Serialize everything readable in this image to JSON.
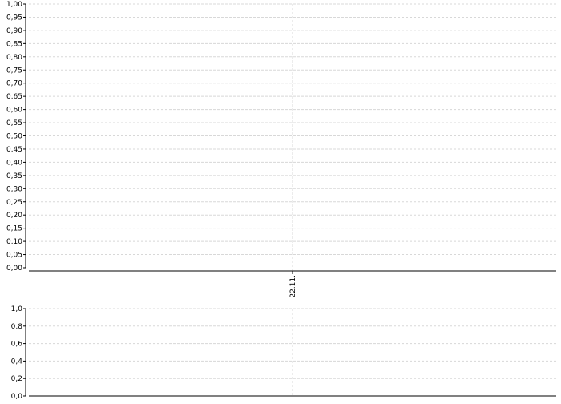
{
  "chart_data": [
    {
      "type": "line",
      "title": "",
      "xlabel": "",
      "ylabel": "",
      "x_tick_labels": [
        "22.11."
      ],
      "ylim": [
        0,
        1
      ],
      "y_ticks": [
        "0,00",
        "0,05",
        "0,10",
        "0,15",
        "0,20",
        "0,25",
        "0,30",
        "0,35",
        "0,40",
        "0,45",
        "0,50",
        "0,55",
        "0,60",
        "0,65",
        "0,70",
        "0,75",
        "0,80",
        "0,85",
        "0,90",
        "0,95",
        "1,00"
      ],
      "grid": true,
      "series": []
    },
    {
      "type": "bar",
      "title": "",
      "xlabel": "",
      "ylabel": "",
      "ylim": [
        0,
        1
      ],
      "y_ticks": [
        "0,0",
        "0,2",
        "0,4",
        "0,6",
        "0,8",
        "1,0"
      ],
      "grid": true,
      "series": []
    }
  ]
}
